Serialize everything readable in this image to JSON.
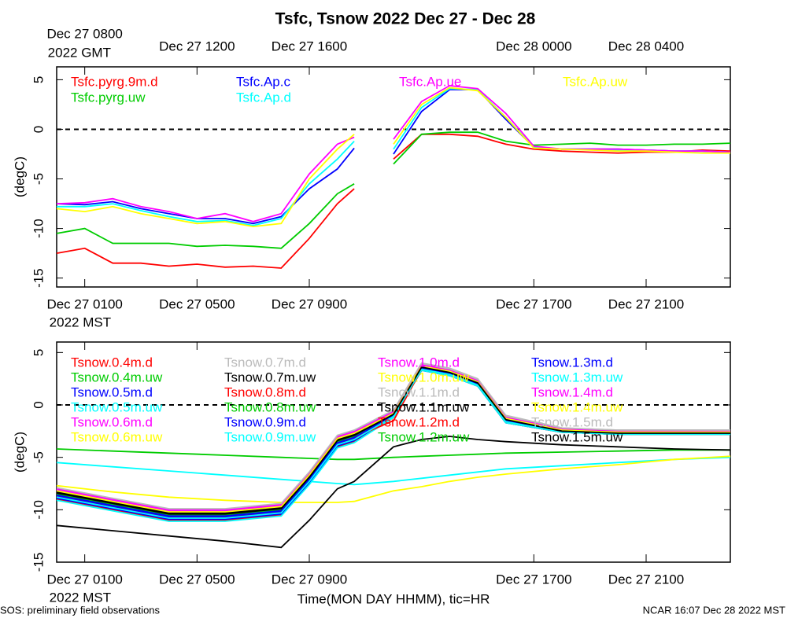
{
  "title": "Tsfc, Tsnow 2022 Dec 27 - Dec 28",
  "footer": {
    "left": "SOS: preliminary field observations",
    "right": "NCAR 16:07 Dec 28 2022 MST"
  },
  "chart_data": [
    {
      "type": "line",
      "ylabel": "(degC)",
      "xlim": [
        0,
        24
      ],
      "ylim": [
        -15.9,
        6.3
      ],
      "yticks": [
        5,
        0,
        -5,
        -10,
        -15
      ],
      "zero_line": true,
      "xticks": [
        {
          "value": 1,
          "label": "Dec 27 0100"
        },
        {
          "value": 5,
          "label": "Dec 27 0500"
        },
        {
          "value": 9,
          "label": "Dec 27 0900"
        },
        {
          "value": 17,
          "label": "Dec 27 1700"
        },
        {
          "value": 21,
          "label": "Dec 27 2100"
        }
      ],
      "x_sublabel": "2022 MST",
      "x2ticks": [
        {
          "value": 1,
          "label": "Dec 27 0800"
        },
        {
          "value": 5,
          "label": "Dec 27 1200"
        },
        {
          "value": 9,
          "label": "Dec 27 1600"
        },
        {
          "value": 17,
          "label": "Dec 28 0000"
        },
        {
          "value": 21,
          "label": "Dec 28 0400"
        }
      ],
      "x2_sublabel": "2022 GMT",
      "x": [
        0,
        1,
        2,
        3,
        4,
        5,
        6,
        7,
        8,
        9,
        10,
        10.6,
        11,
        12,
        13,
        14,
        15,
        16,
        17,
        18,
        19,
        20,
        21,
        22,
        23,
        24
      ],
      "series": [
        {
          "name": "Tsfc.pyrg.9m.d",
          "color": "#ff0000",
          "values": [
            -12.5,
            -12,
            -13.5,
            -13.5,
            -13.8,
            -13.6,
            -13.9,
            -13.8,
            -14,
            -11,
            -7.5,
            -6,
            null,
            -3,
            -0.5,
            -0.5,
            -0.7,
            -1.5,
            -2,
            -2.2,
            -2.3,
            -2.4,
            -2.3,
            -2.3,
            -2.1,
            -2.2
          ]
        },
        {
          "name": "Tsfc.pyrg.uw",
          "color": "#00cc00",
          "values": [
            -10.5,
            -10,
            -11.5,
            -11.5,
            -11.5,
            -11.8,
            -11.7,
            -11.8,
            -12,
            -9.5,
            -6.5,
            -5.5,
            null,
            -3.5,
            -0.5,
            -0.3,
            -0.3,
            -1.2,
            -1.6,
            -1.5,
            -1.4,
            -1.6,
            -1.6,
            -1.5,
            -1.5,
            -1.4
          ]
        },
        {
          "name": "Tsfc.Ap.c",
          "color": "#0000ff",
          "values": [
            -7.5,
            -7.6,
            -7.3,
            -8,
            -8.5,
            -9,
            -9,
            -9.5,
            -8.8,
            -6,
            -4,
            -1.9,
            null,
            -2.5,
            1.8,
            4,
            4,
            1,
            -1.8,
            -2,
            -2,
            -2,
            -2.1,
            -2.2,
            -2.2,
            -2.3
          ]
        },
        {
          "name": "Tsfc.Ap.d",
          "color": "#00ffff",
          "values": [
            -7.8,
            -7.8,
            -7.5,
            -8.2,
            -8.8,
            -9.3,
            -9.2,
            -9.7,
            -9,
            -5.5,
            -3,
            -1.2,
            null,
            -2,
            2.2,
            4.1,
            4,
            1.2,
            -1.8,
            -2,
            -2,
            -2.1,
            -2.1,
            -2.2,
            -2.2,
            -2.3
          ]
        },
        {
          "name": "Tsfc.Ap.ue",
          "color": "#ff00ff",
          "values": [
            -7.5,
            -7.4,
            -7,
            -7.8,
            -8.3,
            -9,
            -8.5,
            -9.3,
            -8.5,
            -4.5,
            -1.5,
            -0.8,
            null,
            -1,
            2.8,
            4.4,
            4.1,
            1.6,
            -1.7,
            -2,
            -2,
            -2,
            -2.1,
            -2.2,
            -2.2,
            -2.3
          ]
        },
        {
          "name": "Tsfc.Ap.uw",
          "color": "#ffff00",
          "values": [
            -8,
            -8.3,
            -7.8,
            -8.5,
            -9,
            -9.5,
            -9.3,
            -9.8,
            -9.5,
            -5,
            -2,
            -0.5,
            null,
            -1.5,
            2.5,
            4.2,
            3.9,
            1.2,
            -1.9,
            -2,
            -2.1,
            -2.2,
            -2.2,
            -2.3,
            -2.4,
            -2.4
          ]
        }
      ]
    },
    {
      "type": "line",
      "ylabel": "(degC)",
      "xlabel": "Time(MON DAY HHMM), tic=HR",
      "xlim": [
        0,
        24
      ],
      "ylim": [
        -15,
        6
      ],
      "yticks": [
        5,
        0,
        -5,
        -10,
        -15
      ],
      "zero_line": true,
      "xticks": [
        {
          "value": 1,
          "label": "Dec 27 0100"
        },
        {
          "value": 5,
          "label": "Dec 27 0500"
        },
        {
          "value": 9,
          "label": "Dec 27 0900"
        },
        {
          "value": 17,
          "label": "Dec 27 1700"
        },
        {
          "value": 21,
          "label": "Dec 27 2100"
        }
      ],
      "x_sublabel": "2022 MST",
      "x": [
        0,
        2,
        4,
        6,
        8,
        9,
        10,
        10.6,
        12,
        13,
        14,
        15,
        16,
        18,
        20,
        22,
        24
      ],
      "series": [
        {
          "name": "Tsnow.0.4m.d",
          "color": "#ff0000",
          "values": [
            -9,
            -10,
            -11,
            -11,
            -10.5,
            -7.5,
            -4,
            -3.5,
            -1.2,
            3.3,
            2.8,
            1.8,
            -1.7,
            -2.6,
            -2.8,
            -2.8,
            -2.8
          ]
        },
        {
          "name": "Tsnow.0.4m.uw",
          "color": "#00cc00",
          "values": [
            -4.2,
            -4.4,
            -4.6,
            -4.8,
            -5,
            -5.1,
            -5.2,
            -5.2,
            -5,
            -4.9,
            -4.8,
            -4.7,
            -4.6,
            -4.5,
            -4.4,
            -4.3,
            -4.3
          ]
        },
        {
          "name": "Tsnow.0.5m.d",
          "color": "#0000ff",
          "values": [
            -8.7,
            -9.7,
            -10.7,
            -10.7,
            -10.2,
            -7.2,
            -3.7,
            -3.2,
            -1,
            3.5,
            3,
            2,
            -1.5,
            -2.5,
            -2.7,
            -2.7,
            -2.7
          ]
        },
        {
          "name": "Tsnow.0.5m.uw",
          "color": "#00ffff",
          "values": [
            -5.5,
            -5.9,
            -6.3,
            -6.7,
            -7.1,
            -7.3,
            -7.5,
            -7.6,
            -7.3,
            -7,
            -6.7,
            -6.4,
            -6.1,
            -5.8,
            -5.5,
            -5.2,
            -5
          ]
        },
        {
          "name": "Tsnow.0.6m.d",
          "color": "#ff00ff",
          "values": [
            -8.2,
            -9.2,
            -10.2,
            -10.2,
            -9.7,
            -6.7,
            -3.2,
            -2.7,
            -0.8,
            3.7,
            3.2,
            2.2,
            -1.3,
            -2.4,
            -2.6,
            -2.6,
            -2.6
          ]
        },
        {
          "name": "Tsnow.0.6m.uw",
          "color": "#ffff00",
          "values": [
            -7.7,
            -8.3,
            -8.8,
            -9.1,
            -9.3,
            -9.3,
            -9.3,
            -9.2,
            -8.2,
            -7.8,
            -7.3,
            -6.9,
            -6.6,
            -6.1,
            -5.7,
            -5.2,
            -4.9
          ]
        },
        {
          "name": "Tsnow.0.7m.d",
          "color": "#bbbbbb",
          "values": [
            -8.3,
            -9.3,
            -10.3,
            -10.3,
            -9.8,
            -6.8,
            -3.3,
            -2.8,
            -0.9,
            3.6,
            3.1,
            2.1,
            -1.4,
            -2.4,
            -2.6,
            -2.6,
            -2.6
          ]
        },
        {
          "name": "Tsnow.0.7m.uw",
          "color": "#000000",
          "values": [
            -11.5,
            -12,
            -12.5,
            -13,
            -13.6,
            -11,
            -8,
            -7.3,
            -4,
            -3.3,
            -3,
            -3.3,
            -3.5,
            -3.8,
            -4,
            -4.2,
            -4.3
          ]
        },
        {
          "name": "Tsnow.0.8m.d",
          "color": "#ff0000",
          "values": [
            -8.8,
            -9.8,
            -10.8,
            -10.8,
            -10.3,
            -7.3,
            -3.8,
            -3.3,
            -1.1,
            3.4,
            2.9,
            1.9,
            -1.6,
            -2.6,
            -2.8,
            -2.8,
            -2.8
          ]
        },
        {
          "name": "Tsnow.0.8m.uw",
          "color": "#00cc00",
          "values": [
            -8.6,
            -9.6,
            -10.6,
            -10.6,
            -10.1,
            -7.1,
            -3.6,
            -3.1,
            -1,
            3.4,
            2.9,
            1.9,
            -1.6,
            -2.5,
            -2.7,
            -2.7,
            -2.7
          ]
        },
        {
          "name": "Tsnow.0.9m.d",
          "color": "#0000ff",
          "values": [
            -8.9,
            -9.9,
            -10.9,
            -10.9,
            -10.4,
            -7.4,
            -3.9,
            -3.4,
            -1.1,
            3.3,
            2.8,
            1.8,
            -1.7,
            -2.6,
            -2.8,
            -2.8,
            -2.8
          ]
        },
        {
          "name": "Tsnow.0.9m.uw",
          "color": "#00ffff",
          "values": [
            -9.1,
            -10.1,
            -11.1,
            -11.1,
            -10.6,
            -7.6,
            -4.1,
            -3.6,
            -1.2,
            3.3,
            2.8,
            1.8,
            -1.7,
            -2.6,
            -2.8,
            -2.8,
            -2.8
          ]
        },
        {
          "name": "Tsnow.1.0m.d",
          "color": "#ff00ff",
          "values": [
            -8.1,
            -9.1,
            -10.1,
            -10.1,
            -9.6,
            -6.6,
            -3.1,
            -2.6,
            -0.7,
            3.8,
            3.3,
            2.3,
            -1.2,
            -2.3,
            -2.5,
            -2.5,
            -2.5
          ]
        },
        {
          "name": "Tsnow.1.0m.uw",
          "color": "#ffff00",
          "values": [
            -8.4,
            -9.4,
            -10.4,
            -10.4,
            -9.9,
            -6.9,
            -3.4,
            -2.9,
            -0.9,
            3.6,
            3.1,
            2.1,
            -1.4,
            -2.5,
            -2.7,
            -2.7,
            -2.7
          ]
        },
        {
          "name": "Tsnow.1.1m.d",
          "color": "#bbbbbb",
          "values": [
            -8,
            -9,
            -10,
            -10,
            -9.5,
            -6.5,
            -3,
            -2.5,
            -0.6,
            3.9,
            3.4,
            2.4,
            -1.1,
            -2.2,
            -2.4,
            -2.4,
            -2.4
          ]
        },
        {
          "name": "Tsnow.1.1m.uw",
          "color": "#000000",
          "values": [
            -8.3,
            -9.3,
            -10.3,
            -10.3,
            -9.8,
            -6.8,
            -3.3,
            -2.8,
            -0.9,
            3.5,
            3,
            2,
            -1.5,
            -2.5,
            -2.7,
            -2.7,
            -2.7
          ]
        },
        {
          "name": "Tsnow.1.2m.d",
          "color": "#ff0000",
          "values": [
            -8.6,
            -9.6,
            -10.6,
            -10.6,
            -10.1,
            -7.1,
            -3.6,
            -3.1,
            -1.5,
            3.4,
            2.9,
            1.9,
            -1.6,
            -2.6,
            -2.8,
            -2.8,
            -2.8
          ]
        },
        {
          "name": "Tsnow.1.2m.uw",
          "color": "#00cc00",
          "values": [
            -8.5,
            -9.5,
            -10.5,
            -10.5,
            -10,
            -7,
            -3.5,
            -3,
            -1,
            3.5,
            3,
            2,
            -1.5,
            -2.5,
            -2.7,
            -2.7,
            -2.7
          ]
        },
        {
          "name": "Tsnow.1.3m.d",
          "color": "#0000ff",
          "values": [
            -8.6,
            -9.6,
            -10.6,
            -10.6,
            -10.1,
            -7.1,
            -3.6,
            -3.1,
            -1,
            3.5,
            3,
            2,
            -1.5,
            -2.5,
            -2.7,
            -2.7,
            -2.7
          ]
        },
        {
          "name": "Tsnow.1.3m.uw",
          "color": "#00ffff",
          "values": [
            -8.8,
            -9.8,
            -10.8,
            -10.8,
            -10.3,
            -7.3,
            -3.8,
            -3.3,
            -1.1,
            3.4,
            2.9,
            1.9,
            -1.6,
            -2.6,
            -2.8,
            -2.8,
            -2.8
          ]
        },
        {
          "name": "Tsnow.1.4m.d",
          "color": "#ff00ff",
          "values": [
            -8,
            -9,
            -10,
            -10,
            -9.5,
            -6.5,
            -3,
            -2.5,
            -0.6,
            3.8,
            3.3,
            2.3,
            -1.2,
            -2.3,
            -2.5,
            -2.5,
            -2.5
          ]
        },
        {
          "name": "Tsnow.1.4m.uw",
          "color": "#ffff00",
          "values": [
            -8.2,
            -9.2,
            -10.2,
            -10.2,
            -9.7,
            -6.7,
            -3.2,
            -2.7,
            -0.8,
            3.7,
            3.2,
            2.2,
            -1.3,
            -2.4,
            -2.6,
            -2.6,
            -2.6
          ]
        },
        {
          "name": "Tsnow.1.5m.d",
          "color": "#bbbbbb",
          "values": [
            -7.9,
            -8.9,
            -9.9,
            -9.9,
            -9.4,
            -6.4,
            -2.9,
            -2.4,
            -0.5,
            4,
            3.5,
            2.5,
            -1,
            -2.2,
            -2.4,
            -2.4,
            -2.4
          ]
        },
        {
          "name": "Tsnow.1.5m.uw",
          "color": "#000000",
          "values": [
            -8.4,
            -9.4,
            -10.4,
            -10.4,
            -9.9,
            -6.9,
            -3.4,
            -2.9,
            -0.9,
            3.6,
            3.1,
            2.1,
            -1.4,
            -2.5,
            -2.7,
            -2.7,
            -2.7
          ]
        }
      ]
    }
  ]
}
